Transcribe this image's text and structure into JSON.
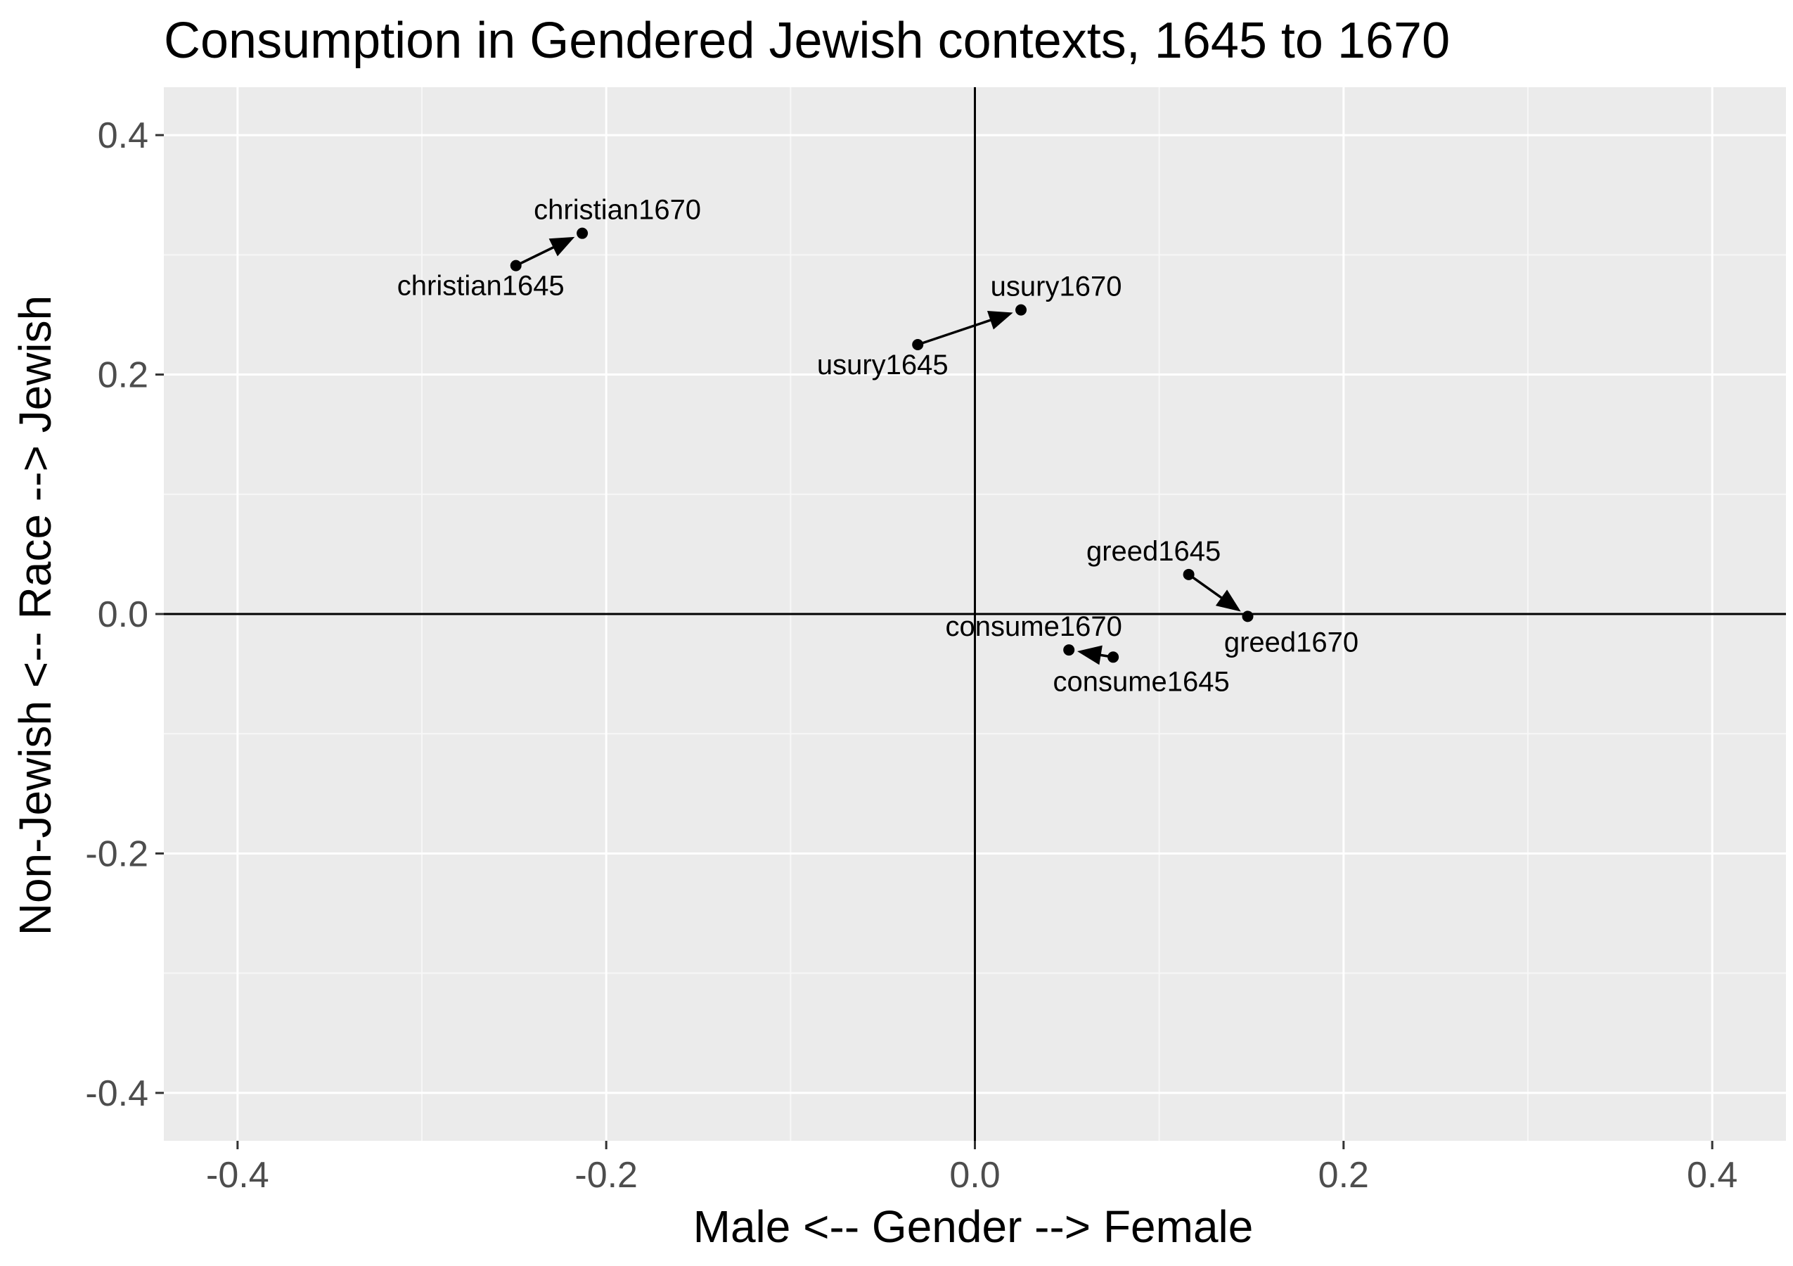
{
  "chart_data": {
    "type": "scatter",
    "title": "Consumption in Gendered Jewish contexts, 1645 to 1670",
    "xlabel": "Male <-- Gender --> Female",
    "ylabel": "Non-Jewish <-- Race --> Jewish",
    "xlim": [
      -0.44,
      0.44
    ],
    "ylim": [
      -0.44,
      0.44
    ],
    "x_ticks": [
      {
        "value": -0.4,
        "label": "-0.4"
      },
      {
        "value": -0.2,
        "label": "-0.2"
      },
      {
        "value": 0.0,
        "label": "0.0"
      },
      {
        "value": 0.2,
        "label": "0.2"
      },
      {
        "value": 0.4,
        "label": "0.4"
      }
    ],
    "y_ticks": [
      {
        "value": 0.4,
        "label": "0.4"
      },
      {
        "value": 0.2,
        "label": "0.2"
      },
      {
        "value": 0.0,
        "label": "0.0"
      },
      {
        "value": -0.2,
        "label": "-0.2"
      },
      {
        "value": -0.4,
        "label": "-0.4"
      }
    ],
    "grid": true,
    "reference_lines": {
      "x": 0,
      "y": 0
    },
    "points": [
      {
        "label": "christian1645",
        "x": -0.249,
        "y": 0.291
      },
      {
        "label": "christian1670",
        "x": -0.213,
        "y": 0.318
      },
      {
        "label": "usury1645",
        "x": -0.031,
        "y": 0.225
      },
      {
        "label": "usury1670",
        "x": 0.025,
        "y": 0.254
      },
      {
        "label": "greed1645",
        "x": 0.116,
        "y": 0.033
      },
      {
        "label": "greed1670",
        "x": 0.148,
        "y": -0.002
      },
      {
        "label": "consume1645",
        "x": 0.075,
        "y": -0.036
      },
      {
        "label": "consume1670",
        "x": 0.051,
        "y": -0.03
      }
    ],
    "arrows": [
      {
        "from": "christian1645",
        "to": "christian1670"
      },
      {
        "from": "usury1645",
        "to": "usury1670"
      },
      {
        "from": "greed1645",
        "to": "greed1670"
      },
      {
        "from": "consume1645",
        "to": "consume1670"
      }
    ],
    "colors": {
      "panel": "#ebebeb",
      "grid_major": "#ffffff",
      "grid_minor": "#f7f7f7",
      "ink": "#000000",
      "tick_text": "#4d4d4d"
    }
  }
}
